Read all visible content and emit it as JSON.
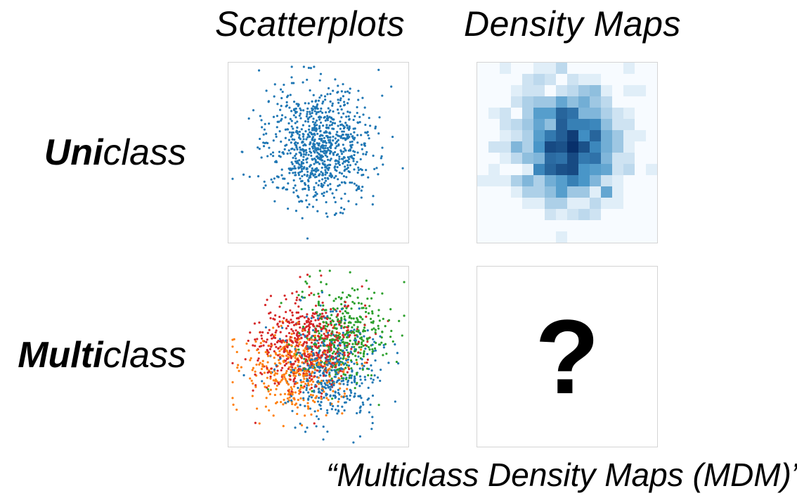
{
  "headers": {
    "col_scatter": "Scatterplots",
    "col_density": "Density Maps"
  },
  "rows": {
    "uniclass": {
      "bold": "Uni",
      "rest": "class"
    },
    "multiclass": {
      "bold": "Multi",
      "rest": "class"
    }
  },
  "question_mark": "?",
  "caption": "“Multiclass Density Maps (MDM)”",
  "colors": {
    "class_blue": "#1f77b4",
    "class_orange": "#ff7f0e",
    "class_green": "#2ca02c",
    "class_red": "#d62728",
    "density_low": "#f7fbff",
    "density_high": "#08306b",
    "panel_border": "#d4d4d4"
  }
}
